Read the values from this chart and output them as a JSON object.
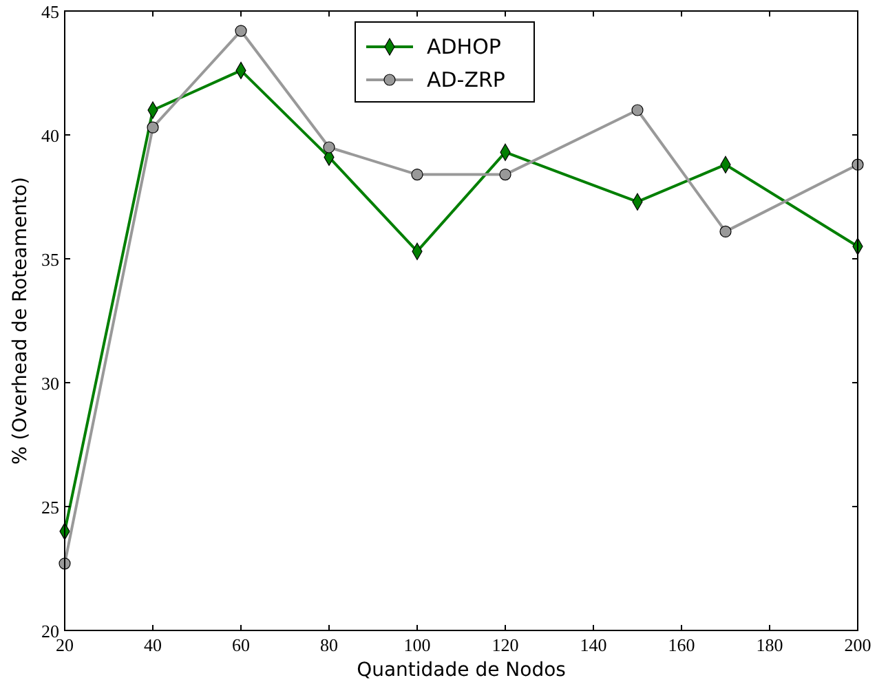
{
  "chart_data": {
    "type": "line",
    "xlabel": "Quantidade de Nodos",
    "ylabel": "% (Overhead de Roteamento)",
    "x": [
      20,
      40,
      60,
      80,
      100,
      120,
      150,
      170,
      200
    ],
    "xlim": [
      20,
      200
    ],
    "xticks": [
      20,
      40,
      60,
      80,
      100,
      120,
      140,
      160,
      180,
      200
    ],
    "ylim": [
      20,
      45
    ],
    "yticks": [
      20,
      25,
      30,
      35,
      40,
      45
    ],
    "grid": false,
    "legend": "top",
    "line_style": "solid",
    "series": [
      {
        "name": "ADHOP",
        "color": "#007f00",
        "marker": "diamond",
        "values": [
          24.0,
          41.0,
          42.6,
          39.1,
          35.3,
          39.3,
          37.3,
          38.8,
          35.5
        ]
      },
      {
        "name": "AD-ZRP",
        "color": "#999999",
        "marker": "circle",
        "values": [
          22.7,
          40.3,
          44.2,
          39.5,
          38.4,
          38.4,
          41.0,
          36.1,
          38.8
        ]
      }
    ]
  }
}
